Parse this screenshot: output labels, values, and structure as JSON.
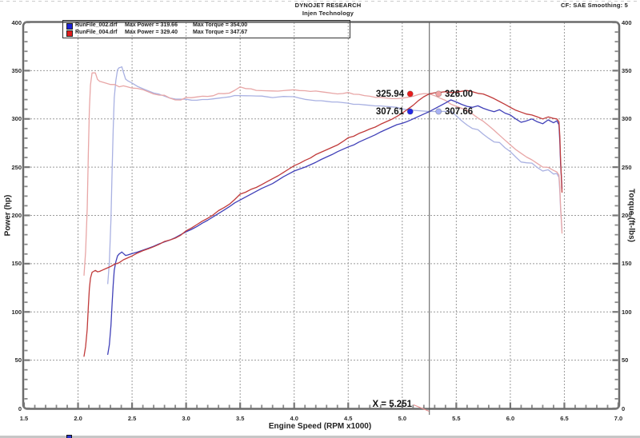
{
  "header": {
    "brand": "DYNOJET RESEARCH",
    "subtitle": "Injen Technology",
    "correction_info": "CF: SAE  Smoothing: 5"
  },
  "legend": {
    "rows": [
      {
        "file": "RunFile_002.drf",
        "max_power": "Max Power = 319.66",
        "max_torque": "Max Torque = 354.00",
        "swatch_color": "#1c22d8"
      },
      {
        "file": "RunFile_004.drf",
        "max_power": "Max Power = 329.40",
        "max_torque": "Max Torque = 347.67",
        "swatch_color": "#e01c1c"
      }
    ]
  },
  "chart_data": {
    "type": "line",
    "xlabel": "Engine Speed (RPM x1000)",
    "ylabel_left": "Power (hp)",
    "ylabel_right": "Torque (ft-lbs)",
    "xlim": [
      1.5,
      7.0
    ],
    "ylim_left": [
      0,
      400
    ],
    "ylim_right": [
      0,
      400
    ],
    "x_tick_labels": [
      "1.5",
      "2.0",
      "2.5",
      "3.0",
      "3.5",
      "4.0",
      "4.5",
      "5.0",
      "5.5",
      "6.0",
      "6.5",
      "7.0"
    ],
    "y_tick_labels": [
      "0",
      "50",
      "100",
      "150",
      "200",
      "250",
      "300",
      "350",
      "400"
    ],
    "x_minor_step": 0.1,
    "y_minor_step": 10,
    "grid": "dashed major gridlines",
    "cursor": {
      "x": 5.251,
      "label": "X = 5.251"
    },
    "markers": [
      {
        "value": "325.94",
        "run": "RunFile_004.drf",
        "quantity": "power",
        "dot_color": "#e81c1c",
        "label_side": "left"
      },
      {
        "value": "326.00",
        "run": "RunFile_004.drf",
        "quantity": "torque",
        "dot_color": "#f2a4a4",
        "label_side": "right"
      },
      {
        "value": "307.61",
        "run": "RunFile_002.drf",
        "quantity": "power",
        "dot_color": "#2428e4",
        "label_side": "left"
      },
      {
        "value": "307.66",
        "run": "RunFile_002.drf",
        "quantity": "torque",
        "dot_color": "#a8b2f4",
        "label_side": "right"
      }
    ],
    "torque_note": "torque curves shown = power_hp * 5252 / RPM",
    "series": [
      {
        "name": "RunFile_002.drf power (hp)",
        "axis": "left",
        "color": "#4040b8",
        "width": 1.3,
        "points": [
          [
            2.275,
            56
          ],
          [
            2.29,
            66
          ],
          [
            2.305,
            86
          ],
          [
            2.315,
            108
          ],
          [
            2.325,
            128
          ],
          [
            2.335,
            143
          ],
          [
            2.35,
            152
          ],
          [
            2.365,
            158
          ],
          [
            2.38,
            160
          ],
          [
            2.395,
            161.2
          ],
          [
            2.405,
            162.1
          ],
          [
            2.42,
            160.5
          ],
          [
            2.44,
            158.5
          ],
          [
            2.46,
            159
          ],
          [
            2.5,
            160.5
          ],
          [
            2.55,
            162
          ],
          [
            2.6,
            164
          ],
          [
            2.65,
            166
          ],
          [
            2.7,
            168
          ],
          [
            2.75,
            170.5
          ],
          [
            2.8,
            172.5
          ],
          [
            2.85,
            174.5
          ],
          [
            2.9,
            177
          ],
          [
            2.95,
            180
          ],
          [
            3.0,
            183
          ],
          [
            3.05,
            185.5
          ],
          [
            3.1,
            188.5
          ],
          [
            3.15,
            192
          ],
          [
            3.2,
            195
          ],
          [
            3.25,
            198.5
          ],
          [
            3.3,
            202
          ],
          [
            3.35,
            205.5
          ],
          [
            3.4,
            209
          ],
          [
            3.45,
            213
          ],
          [
            3.5,
            216
          ],
          [
            3.55,
            219
          ],
          [
            3.6,
            222
          ],
          [
            3.65,
            225
          ],
          [
            3.7,
            228
          ],
          [
            3.75,
            230.5
          ],
          [
            3.8,
            233
          ],
          [
            3.85,
            236.5
          ],
          [
            3.9,
            240
          ],
          [
            3.95,
            243
          ],
          [
            4.0,
            246
          ],
          [
            4.05,
            248
          ],
          [
            4.1,
            250
          ],
          [
            4.15,
            252.5
          ],
          [
            4.2,
            255
          ],
          [
            4.25,
            258
          ],
          [
            4.3,
            260.5
          ],
          [
            4.35,
            263
          ],
          [
            4.4,
            266
          ],
          [
            4.45,
            268.5
          ],
          [
            4.5,
            271
          ],
          [
            4.55,
            273
          ],
          [
            4.6,
            276
          ],
          [
            4.65,
            278.5
          ],
          [
            4.7,
            281
          ],
          [
            4.75,
            283.5
          ],
          [
            4.8,
            286.5
          ],
          [
            4.85,
            289
          ],
          [
            4.9,
            291.5
          ],
          [
            4.95,
            294
          ],
          [
            5.0,
            295.5
          ],
          [
            5.05,
            297.5
          ],
          [
            5.1,
            300
          ],
          [
            5.15,
            302.5
          ],
          [
            5.2,
            305
          ],
          [
            5.251,
            307.61
          ],
          [
            5.3,
            310.5
          ],
          [
            5.35,
            313.5
          ],
          [
            5.4,
            316.5
          ],
          [
            5.45,
            319.66
          ],
          [
            5.5,
            317.5
          ],
          [
            5.55,
            315
          ],
          [
            5.6,
            313
          ],
          [
            5.65,
            312
          ],
          [
            5.7,
            313.5
          ],
          [
            5.75,
            311
          ],
          [
            5.8,
            309
          ],
          [
            5.85,
            307.5
          ],
          [
            5.9,
            309.5
          ],
          [
            5.95,
            306
          ],
          [
            6.0,
            304
          ],
          [
            6.05,
            300
          ],
          [
            6.1,
            296.5
          ],
          [
            6.15,
            298
          ],
          [
            6.2,
            300
          ],
          [
            6.25,
            297
          ],
          [
            6.3,
            295
          ],
          [
            6.35,
            299
          ],
          [
            6.4,
            296
          ],
          [
            6.43,
            298
          ],
          [
            6.45,
            294
          ],
          [
            6.458,
            276
          ],
          [
            6.465,
            254
          ],
          [
            6.472,
            240
          ],
          [
            6.478,
            228
          ]
        ]
      },
      {
        "name": "RunFile_004.drf power (hp)",
        "axis": "left",
        "color": "#c03a3a",
        "width": 1.3,
        "points": [
          [
            2.055,
            54
          ],
          [
            2.07,
            64
          ],
          [
            2.085,
            82
          ],
          [
            2.095,
            105
          ],
          [
            2.105,
            124
          ],
          [
            2.115,
            135
          ],
          [
            2.13,
            141
          ],
          [
            2.145,
            142
          ],
          [
            2.16,
            143
          ],
          [
            2.18,
            141.5
          ],
          [
            2.2,
            142
          ],
          [
            2.23,
            143.5
          ],
          [
            2.26,
            145
          ],
          [
            2.3,
            147
          ],
          [
            2.34,
            149.5
          ],
          [
            2.38,
            151
          ],
          [
            2.42,
            154
          ],
          [
            2.46,
            156
          ],
          [
            2.5,
            158
          ],
          [
            2.55,
            161
          ],
          [
            2.6,
            163.5
          ],
          [
            2.65,
            165.5
          ],
          [
            2.7,
            167.5
          ],
          [
            2.75,
            170
          ],
          [
            2.8,
            173
          ],
          [
            2.85,
            174.5
          ],
          [
            2.9,
            176.5
          ],
          [
            2.95,
            179.5
          ],
          [
            3.0,
            184
          ],
          [
            3.05,
            187
          ],
          [
            3.1,
            190.5
          ],
          [
            3.15,
            194
          ],
          [
            3.2,
            197
          ],
          [
            3.25,
            200.5
          ],
          [
            3.3,
            205
          ],
          [
            3.35,
            208
          ],
          [
            3.4,
            211.5
          ],
          [
            3.45,
            216.5
          ],
          [
            3.5,
            222
          ],
          [
            3.55,
            224
          ],
          [
            3.6,
            227
          ],
          [
            3.65,
            229
          ],
          [
            3.7,
            232
          ],
          [
            3.75,
            235
          ],
          [
            3.8,
            238
          ],
          [
            3.85,
            241
          ],
          [
            3.9,
            244.5
          ],
          [
            3.95,
            248
          ],
          [
            4.0,
            251.5
          ],
          [
            4.05,
            254
          ],
          [
            4.1,
            257
          ],
          [
            4.15,
            259.5
          ],
          [
            4.2,
            263
          ],
          [
            4.25,
            265.5
          ],
          [
            4.3,
            268
          ],
          [
            4.35,
            270.5
          ],
          [
            4.4,
            273
          ],
          [
            4.45,
            276.5
          ],
          [
            4.5,
            280.5
          ],
          [
            4.55,
            282
          ],
          [
            4.6,
            285
          ],
          [
            4.65,
            287
          ],
          [
            4.7,
            289.5
          ],
          [
            4.75,
            291.5
          ],
          [
            4.8,
            294.5
          ],
          [
            4.85,
            297
          ],
          [
            4.9,
            299.5
          ],
          [
            4.95,
            302.5
          ],
          [
            5.0,
            306
          ],
          [
            5.05,
            310
          ],
          [
            5.1,
            314
          ],
          [
            5.15,
            319
          ],
          [
            5.2,
            323
          ],
          [
            5.251,
            325.94
          ],
          [
            5.3,
            327
          ],
          [
            5.35,
            327.5
          ],
          [
            5.4,
            328.2
          ],
          [
            5.45,
            327.2
          ],
          [
            5.5,
            327.8
          ],
          [
            5.55,
            328.6
          ],
          [
            5.6,
            329.4
          ],
          [
            5.65,
            328.2
          ],
          [
            5.7,
            326.5
          ],
          [
            5.75,
            325.8
          ],
          [
            5.8,
            323.5
          ],
          [
            5.85,
            321
          ],
          [
            5.9,
            318
          ],
          [
            5.95,
            315
          ],
          [
            6.0,
            312
          ],
          [
            6.05,
            309
          ],
          [
            6.1,
            307
          ],
          [
            6.15,
            305
          ],
          [
            6.2,
            304
          ],
          [
            6.25,
            302
          ],
          [
            6.3,
            300
          ],
          [
            6.35,
            302
          ],
          [
            6.4,
            300.5
          ],
          [
            6.43,
            300
          ],
          [
            6.45,
            297
          ],
          [
            6.458,
            282
          ],
          [
            6.465,
            258
          ],
          [
            6.472,
            240
          ],
          [
            6.478,
            224
          ]
        ]
      },
      {
        "name": "RunFile_002.drf torque (ft-lbs)",
        "axis": "right",
        "color": "#a9b1e2",
        "width": 1.3,
        "derived_from": 0
      },
      {
        "name": "RunFile_004.drf torque (ft-lbs)",
        "axis": "right",
        "color": "#e8a6a6",
        "width": 1.3,
        "derived_from": 1
      }
    ]
  },
  "footer": {
    "note": ""
  }
}
